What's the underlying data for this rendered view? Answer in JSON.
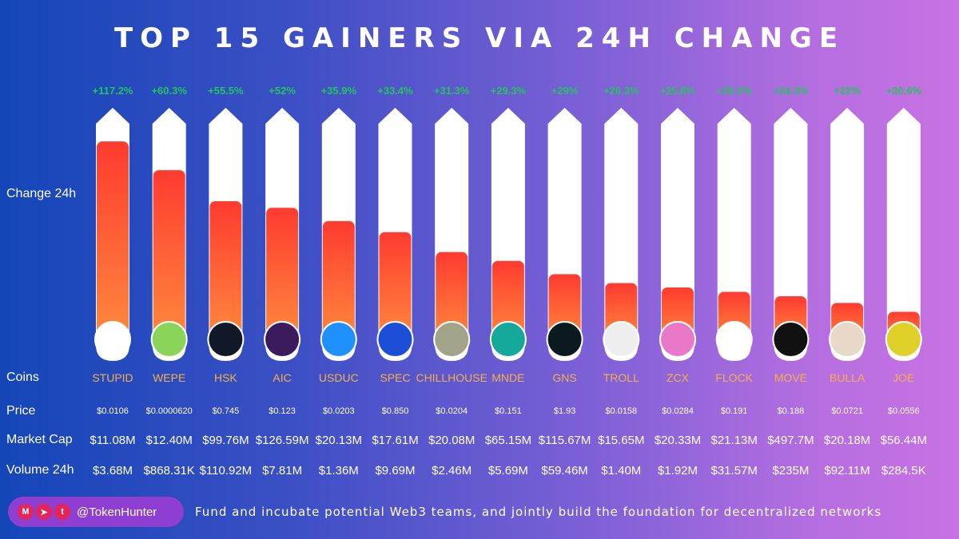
{
  "title": "TOP 15 GAINERS VIA 24H CHANGE",
  "labels": {
    "change": "Change 24h",
    "coins": "Coins",
    "price": "Price",
    "market_cap": "Market Cap",
    "volume": "Volume 24h"
  },
  "footer": {
    "handle": "@TokenHunter",
    "tagline": "Fund and incubate potential Web3 teams, and jointly build the foundation for decentralized networks",
    "icons": [
      "medium-icon",
      "telegram-icon",
      "twitter-icon"
    ]
  },
  "colors": {
    "bar_top": "#ff3b30",
    "bar_bottom": "#ff8a3d",
    "pct_text": "#22c55e",
    "coin_text": "#f6b04a"
  },
  "chart_data": {
    "type": "bar",
    "title": "TOP 15 GAINERS VIA 24H CHANGE",
    "categories": [
      "STUPID",
      "WEPE",
      "HSK",
      "AIC",
      "USDUC",
      "SPEC",
      "CHILLHOUSE",
      "MNDE",
      "GNS",
      "TROLL",
      "ZCX",
      "FLOCK",
      "MOVE",
      "BULLA",
      "JOE"
    ],
    "change_labels": [
      "+117.2%",
      "+60.3%",
      "+55.5%",
      "+52%",
      "+35.9%",
      "+33.4%",
      "+31.3%",
      "+29.3%",
      "+29%",
      "+26.3%",
      "+25.8%",
      "+25.2%",
      "+24.3%",
      "+22%",
      "+20.6%"
    ],
    "series": [
      {
        "values": [
          117.2,
          60.3,
          55.5,
          52,
          35.9,
          33.4,
          31.3,
          29.3,
          29,
          26.3,
          25.8,
          25.2,
          24.3,
          22,
          20.6
        ]
      }
    ],
    "bar_fill_fraction": [
      0.92,
      0.79,
      0.65,
      0.62,
      0.56,
      0.51,
      0.42,
      0.38,
      0.32,
      0.28,
      0.26,
      0.24,
      0.22,
      0.19,
      0.15
    ],
    "price": [
      "$0.0106",
      "$0.0000620",
      "$0.745",
      "$0.123",
      "$0.0203",
      "$0.850",
      "$0.0204",
      "$0.151",
      "$1.93",
      "$0.0158",
      "$0.0284",
      "$0.191",
      "$0.188",
      "$0.0721",
      "$0.0556"
    ],
    "market_cap": [
      "$11.08M",
      "$12.40M",
      "$99.76M",
      "$126.59M",
      "$20.13M",
      "$17.61M",
      "$20.08M",
      "$65.15M",
      "$115.67M",
      "$15.65M",
      "$20.33M",
      "$21.13M",
      "$497.7M",
      "$20.18M",
      "$56.44M"
    ],
    "volume_24h": [
      "$3.68M",
      "$868.31K",
      "$110.92M",
      "$7.81M",
      "$1.36M",
      "$9.69M",
      "$2.46M",
      "$5.69M",
      "$59.46M",
      "$1.40M",
      "$1.92M",
      "$31.57M",
      "$235M",
      "$92.11M",
      "$284.5K"
    ],
    "logo_colors": [
      "#ffffff",
      "#8bd45a",
      "#111827",
      "#3b1a5e",
      "#1e90ff",
      "#1d4ed8",
      "#a3a38a",
      "#14a99a",
      "#0b1a1f",
      "#eeeeee",
      "#e879c9",
      "#ffffff",
      "#111111",
      "#e8d8c8",
      "#e0d02a"
    ],
    "logo_icons": [
      "stupid-logo-icon",
      "wepe-frog-icon",
      "hsk-icon",
      "aic-icon",
      "usduc-icon",
      "spec-icon",
      "chillhouse-icon",
      "mnde-icon",
      "gns-icon",
      "troll-face-icon",
      "zcx-cloud-icon",
      "flock-icon",
      "move-icon",
      "bulla-face-icon",
      "joe-icon"
    ]
  }
}
